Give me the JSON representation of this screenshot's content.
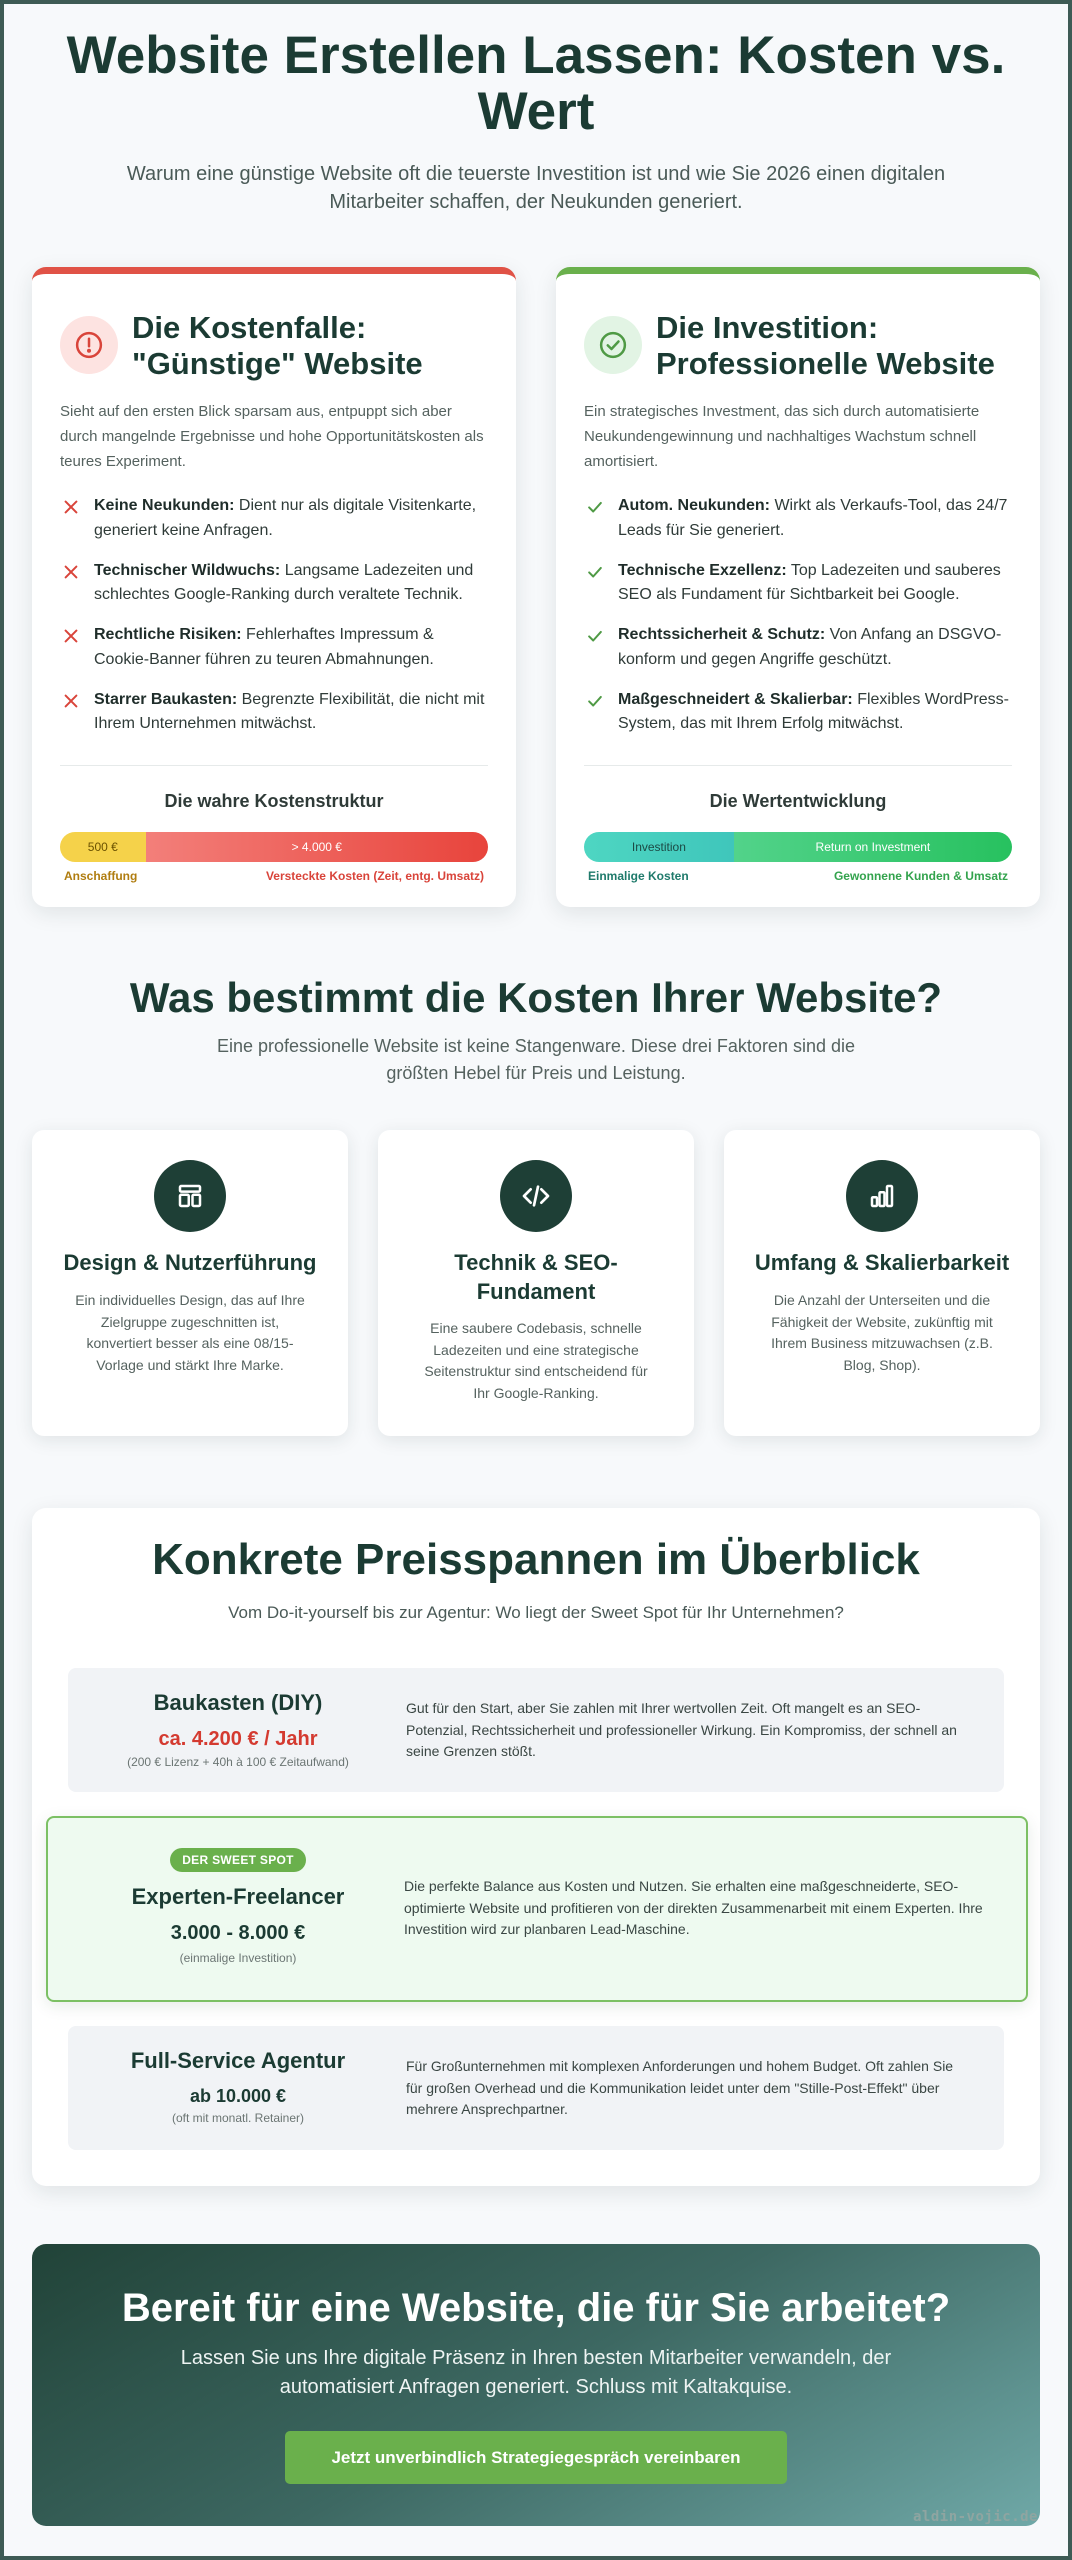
{
  "hero": {
    "title": "Website Erstellen Lassen: Kosten vs. Wert",
    "subtitle": "Warum eine günstige Website oft die teuerste Investition ist und wie Sie 2026 einen digitalen Mitarbeiter schaffen, der Neukunden generiert."
  },
  "bad_card": {
    "icon": "alert-circle-icon",
    "accent": "#e05246",
    "title": "Die Kostenfalle: \"Günstige\" Website",
    "intro": "Sieht auf den ersten Blick sparsam aus, entpuppt sich aber durch mangelnde Ergebnisse und hohe Opportunitätskosten als teures Experiment.",
    "items": [
      {
        "bold": "Keine Neukunden:",
        "text": " Dient nur als digitale Visitenkarte, generiert keine Anfragen."
      },
      {
        "bold": "Technischer Wildwuchs:",
        "text": " Langsame Ladezeiten und schlechtes Google-Ranking durch veraltete Technik."
      },
      {
        "bold": "Rechtliche Risiken:",
        "text": " Fehlerhaftes Impressum & Cookie-Banner führen zu teuren Abmahnungen."
      },
      {
        "bold": "Starrer Baukasten:",
        "text": " Begrenzte Flexibilität, die nicht mit Ihrem Unternehmen mitwächst."
      }
    ],
    "bar_title": "Die wahre Kostenstruktur",
    "bar": {
      "seg1": "500 €",
      "seg2": "> 4.000 €",
      "seg1_share": 0.2
    },
    "label_left": "Anschaffung",
    "label_right": "Versteckte Kosten (Zeit, entg. Umsatz)"
  },
  "good_card": {
    "icon": "check-circle-icon",
    "accent": "#6ab04c",
    "title": "Die Investition: Professionelle Website",
    "intro": "Ein strategisches Investment, das sich durch automatisierte Neukundengewinnung und nachhaltiges Wachstum schnell amortisiert.",
    "items": [
      {
        "bold": "Autom. Neukunden:",
        "text": " Wirkt als Verkaufs-Tool, das 24/7 Leads für Sie generiert."
      },
      {
        "bold": "Technische Exzellenz:",
        "text": " Top Ladezeiten und sauberes SEO als Fundament für Sichtbarkeit bei Google."
      },
      {
        "bold": "Rechtssicherheit & Schutz:",
        "text": " Von Anfang an DSGVO-konform und gegen Angriffe geschützt."
      },
      {
        "bold": "Maßgeschneidert & Skalierbar:",
        "text": " Flexibles WordPress-System, das mit Ihrem Erfolg mitwächst."
      }
    ],
    "bar_title": "Die Wertentwicklung",
    "bar": {
      "seg1": "Investition",
      "seg2": "Return on Investment",
      "seg1_share": 0.35
    },
    "label_left": "Einmalige Kosten",
    "label_right": "Gewonnene Kunden & Umsatz"
  },
  "factors": {
    "title": "Was bestimmt die Kosten Ihrer Website?",
    "subtitle": "Eine professionelle Website ist keine Stangenware. Diese drei Faktoren sind die größten Hebel für Preis und Leistung.",
    "cards": [
      {
        "icon": "layout-icon",
        "title": "Design & Nutzerführung",
        "text": "Ein individuelles Design, das auf Ihre Zielgruppe zugeschnitten ist, konvertiert besser als eine 08/15-Vorlage und stärkt Ihre Marke."
      },
      {
        "icon": "code-icon",
        "title": "Technik & SEO-Fundament",
        "text": "Eine saubere Codebasis, schnelle Ladezeiten und eine strategische Seitenstruktur sind entscheidend für Ihr Google-Ranking."
      },
      {
        "icon": "bar-chart-icon",
        "title": "Umfang & Skalierbarkeit",
        "text": "Die Anzahl der Unterseiten und die Fähigkeit der Website, zukünftig mit Ihrem Business mitzuwachsen (z.B. Blog, Shop)."
      }
    ]
  },
  "prices": {
    "title": "Konkrete Preisspannen im Überblick",
    "subtitle": "Vom Do-it-yourself bis zur Agentur: Wo liegt der Sweet Spot für Ihr Unternehmen?",
    "tiers": [
      {
        "name": "Baukasten (DIY)",
        "price": "ca. 4.200 € / Jahr",
        "note": "(200 € Lizenz + 40h à 100 € Zeitaufwand)",
        "desc": "Gut für den Start, aber Sie zahlen mit Ihrer wertvollen Zeit. Oft mangelt es an SEO-Potenzial, Rechtssicherheit und professioneller Wirkung. Ein Kompromiss, der schnell an seine Grenzen stößt."
      },
      {
        "badge": "DER SWEET SPOT",
        "name": "Experten-Freelancer",
        "price": "3.000 - 8.000 €",
        "note": "(einmalige Investition)",
        "desc": "Die perfekte Balance aus Kosten und Nutzen. Sie erhalten eine maßgeschneiderte, SEO-optimierte Website und profitieren von der direkten Zusammenarbeit mit einem Experten. Ihre Investition wird zur planbaren Lead-Maschine."
      },
      {
        "name": "Full-Service Agentur",
        "price": "ab 10.000 €",
        "note": "(oft mit monatl. Retainer)",
        "desc": "Für Großunternehmen mit komplexen Anforderungen und hohem Budget. Oft zahlen Sie für großen Overhead und die Kommunikation leidet unter dem \"Stille-Post-Effekt\" über mehrere Ansprechpartner."
      }
    ]
  },
  "cta": {
    "title": "Bereit für eine Website, die für Sie arbeitet?",
    "text": "Lassen Sie uns Ihre digitale Präsenz in Ihren besten Mitarbeiter verwandeln, der automatisiert Anfragen generiert. Schluss mit Kaltakquise.",
    "button": "Jetzt unverbindlich Strategiegespräch vereinbaren"
  },
  "watermark": "aldin-vojic.de"
}
